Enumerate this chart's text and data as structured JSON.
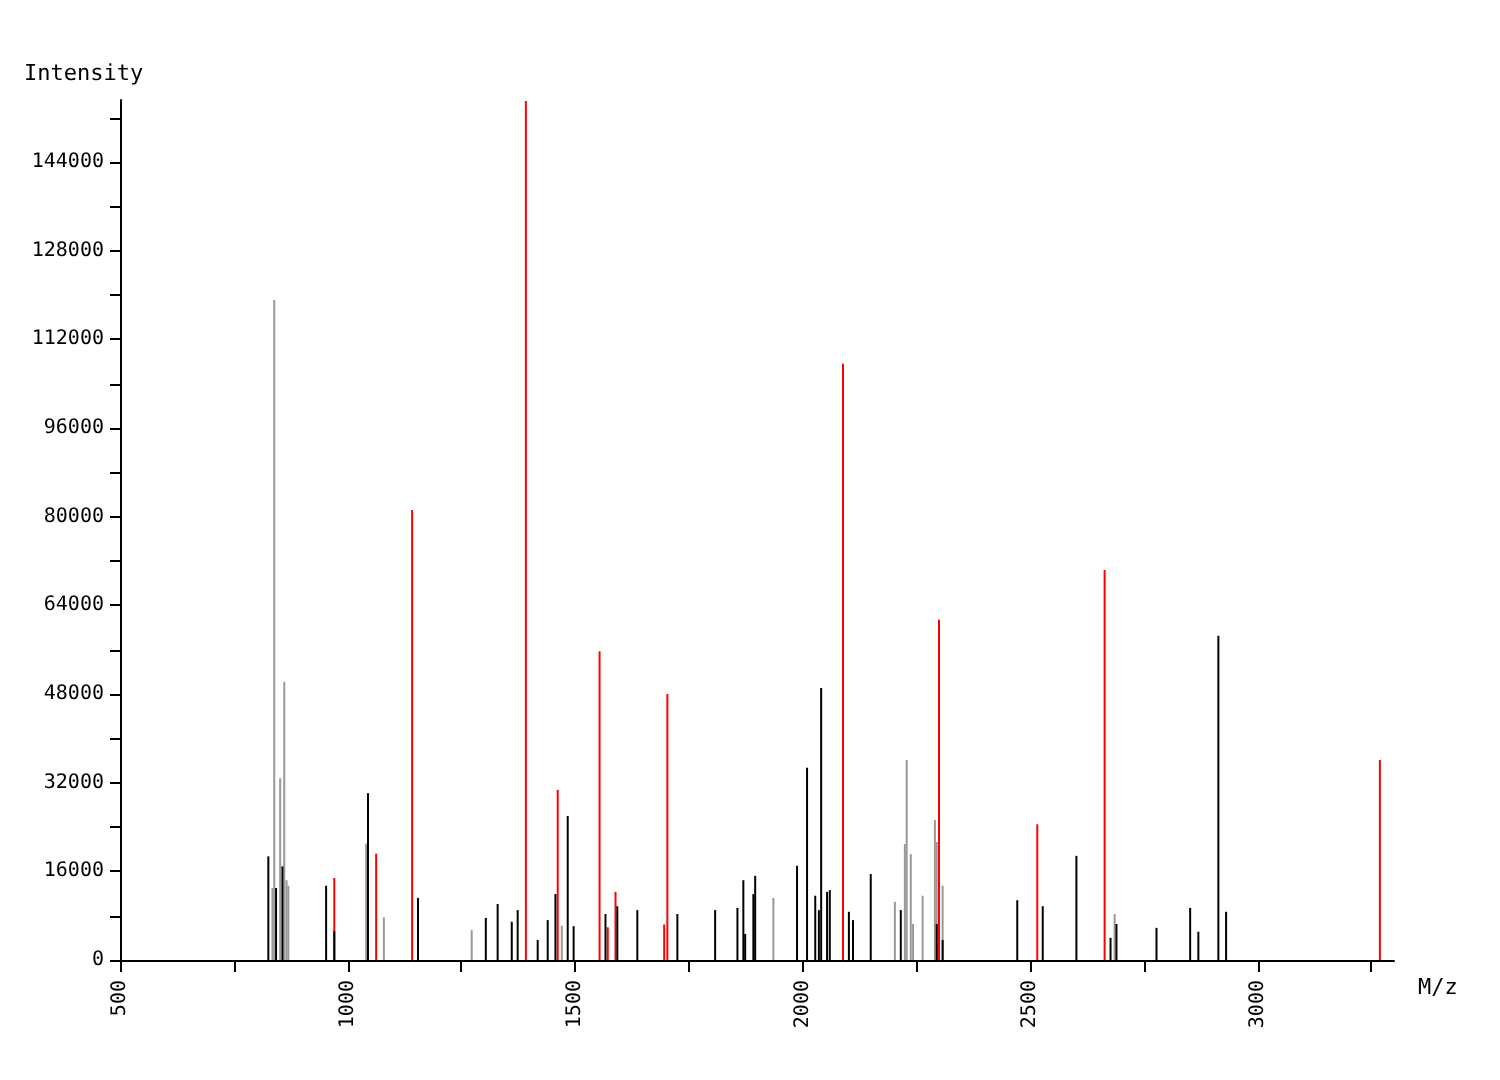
{
  "chart_data": {
    "type": "bar",
    "xlabel": "M/z",
    "ylabel": "Intensity",
    "xlim": [
      500,
      3300
    ],
    "ylim": [
      0,
      155200
    ],
    "xticks": [
      500,
      {
        "value": 750,
        "label": null
      },
      1000,
      {
        "value": 1250,
        "label": null
      },
      1500,
      {
        "value": 1750,
        "label": null
      },
      2000,
      {
        "value": 2250,
        "label": null
      },
      2500,
      {
        "value": 2750,
        "label": null
      },
      3000,
      {
        "value": 3250,
        "label": null
      }
    ],
    "yticks": [
      0,
      {
        "value": 8000,
        "label": null
      },
      16000,
      {
        "value": 24000,
        "label": null
      },
      32000,
      {
        "value": 40000,
        "label": null
      },
      48000,
      {
        "value": 56000,
        "label": null
      },
      64000,
      {
        "value": 72000,
        "label": null
      },
      80000,
      {
        "value": 88000,
        "label": null
      },
      96000,
      {
        "value": 104000,
        "label": null
      },
      112000,
      {
        "value": 120000,
        "label": null
      },
      128000,
      {
        "value": 136000,
        "label": null
      },
      144000,
      {
        "value": 152000,
        "label": null
      }
    ],
    "grid": false,
    "series": [
      {
        "color": "#999999",
        "x": [
          835,
          839,
          852,
          861,
          866,
          870,
          1041,
          1080,
          1273,
          1471,
          1936,
          2203,
          2225,
          2229,
          2238,
          2243,
          2264,
          2291,
          2295,
          2308,
          2686
        ],
        "values": [
          13000,
          119100,
          32800,
          50200,
          14400,
          13400,
          21000,
          7700,
          5400,
          6200,
          11200,
          10500,
          20900,
          36100,
          19100,
          6500,
          11600,
          25300,
          21300,
          13400,
          8300
        ]
      },
      {
        "color": "#ff0000",
        "x": [
          971,
          1063,
          1142,
          1392,
          1462,
          1554,
          1572,
          1589,
          1696,
          1703,
          2089,
          2300,
          2516,
          2664,
          3269
        ],
        "values": [
          14800,
          19200,
          81200,
          155000,
          30700,
          55700,
          5900,
          12300,
          6400,
          48000,
          107600,
          61400,
          24500,
          70400,
          36100
        ]
      },
      {
        "color": "#000000",
        "x": [
          826,
          843,
          857,
          953,
          971,
          1045,
          1155,
          1304,
          1330,
          1361,
          1374,
          1418,
          1440,
          1457,
          1484,
          1497,
          1567,
          1593,
          1637,
          1725,
          1808,
          1857,
          1870,
          1874,
          1892,
          1896,
          1988,
          2010,
          2028,
          2036,
          2041,
          2054,
          2060,
          2102,
          2111,
          2150,
          2216,
          2295,
          2308,
          2472,
          2528,
          2602,
          2677,
          2690,
          2778,
          2852,
          2870,
          2914,
          2931
        ],
        "values": [
          18700,
          13000,
          16900,
          13400,
          5200,
          30100,
          11200,
          7600,
          10100,
          6900,
          9000,
          3600,
          7200,
          11900,
          26000,
          6100,
          8300,
          9700,
          9000,
          8300,
          9000,
          9400,
          14400,
          4700,
          11900,
          15200,
          17000,
          34700,
          11600,
          9000,
          49100,
          12300,
          12600,
          8700,
          7200,
          15500,
          9000,
          6500,
          3600,
          10800,
          9700,
          18800,
          4000,
          6500,
          5800,
          9400,
          5100,
          58500,
          8700
        ]
      }
    ]
  }
}
